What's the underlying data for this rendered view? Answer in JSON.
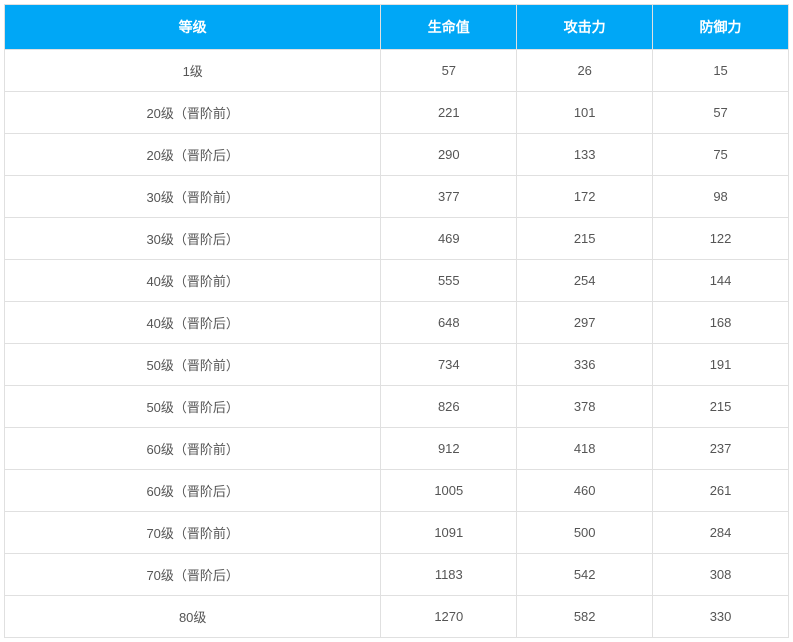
{
  "table": {
    "type": "table",
    "header_bg_color": "#00a7f6",
    "header_text_color": "#ffffff",
    "cell_text_color": "#555555",
    "border_color": "#e0e0e0",
    "background_color": "#ffffff",
    "header_fontsize": 14,
    "cell_fontsize": 13,
    "columns": [
      {
        "label": "等级",
        "width_pct": 48
      },
      {
        "label": "生命值",
        "width_pct": 17.33
      },
      {
        "label": "攻击力",
        "width_pct": 17.33
      },
      {
        "label": "防御力",
        "width_pct": 17.33
      }
    ],
    "rows": [
      {
        "level": "1级",
        "hp": "57",
        "atk": "26",
        "def": "15"
      },
      {
        "level": "20级（晋阶前）",
        "hp": "221",
        "atk": "101",
        "def": "57"
      },
      {
        "level": "20级（晋阶后）",
        "hp": "290",
        "atk": "133",
        "def": "75"
      },
      {
        "level": "30级（晋阶前）",
        "hp": "377",
        "atk": "172",
        "def": "98"
      },
      {
        "level": "30级（晋阶后）",
        "hp": "469",
        "atk": "215",
        "def": "122"
      },
      {
        "level": "40级（晋阶前）",
        "hp": "555",
        "atk": "254",
        "def": "144"
      },
      {
        "level": "40级（晋阶后）",
        "hp": "648",
        "atk": "297",
        "def": "168"
      },
      {
        "level": "50级（晋阶前）",
        "hp": "734",
        "atk": "336",
        "def": "191"
      },
      {
        "level": "50级（晋阶后）",
        "hp": "826",
        "atk": "378",
        "def": "215"
      },
      {
        "level": "60级（晋阶前）",
        "hp": "912",
        "atk": "418",
        "def": "237"
      },
      {
        "level": "60级（晋阶后）",
        "hp": "1005",
        "atk": "460",
        "def": "261"
      },
      {
        "level": "70级（晋阶前）",
        "hp": "1091",
        "atk": "500",
        "def": "284"
      },
      {
        "level": "70级（晋阶后）",
        "hp": "1183",
        "atk": "542",
        "def": "308"
      },
      {
        "level": "80级",
        "hp": "1270",
        "atk": "582",
        "def": "330"
      }
    ]
  }
}
